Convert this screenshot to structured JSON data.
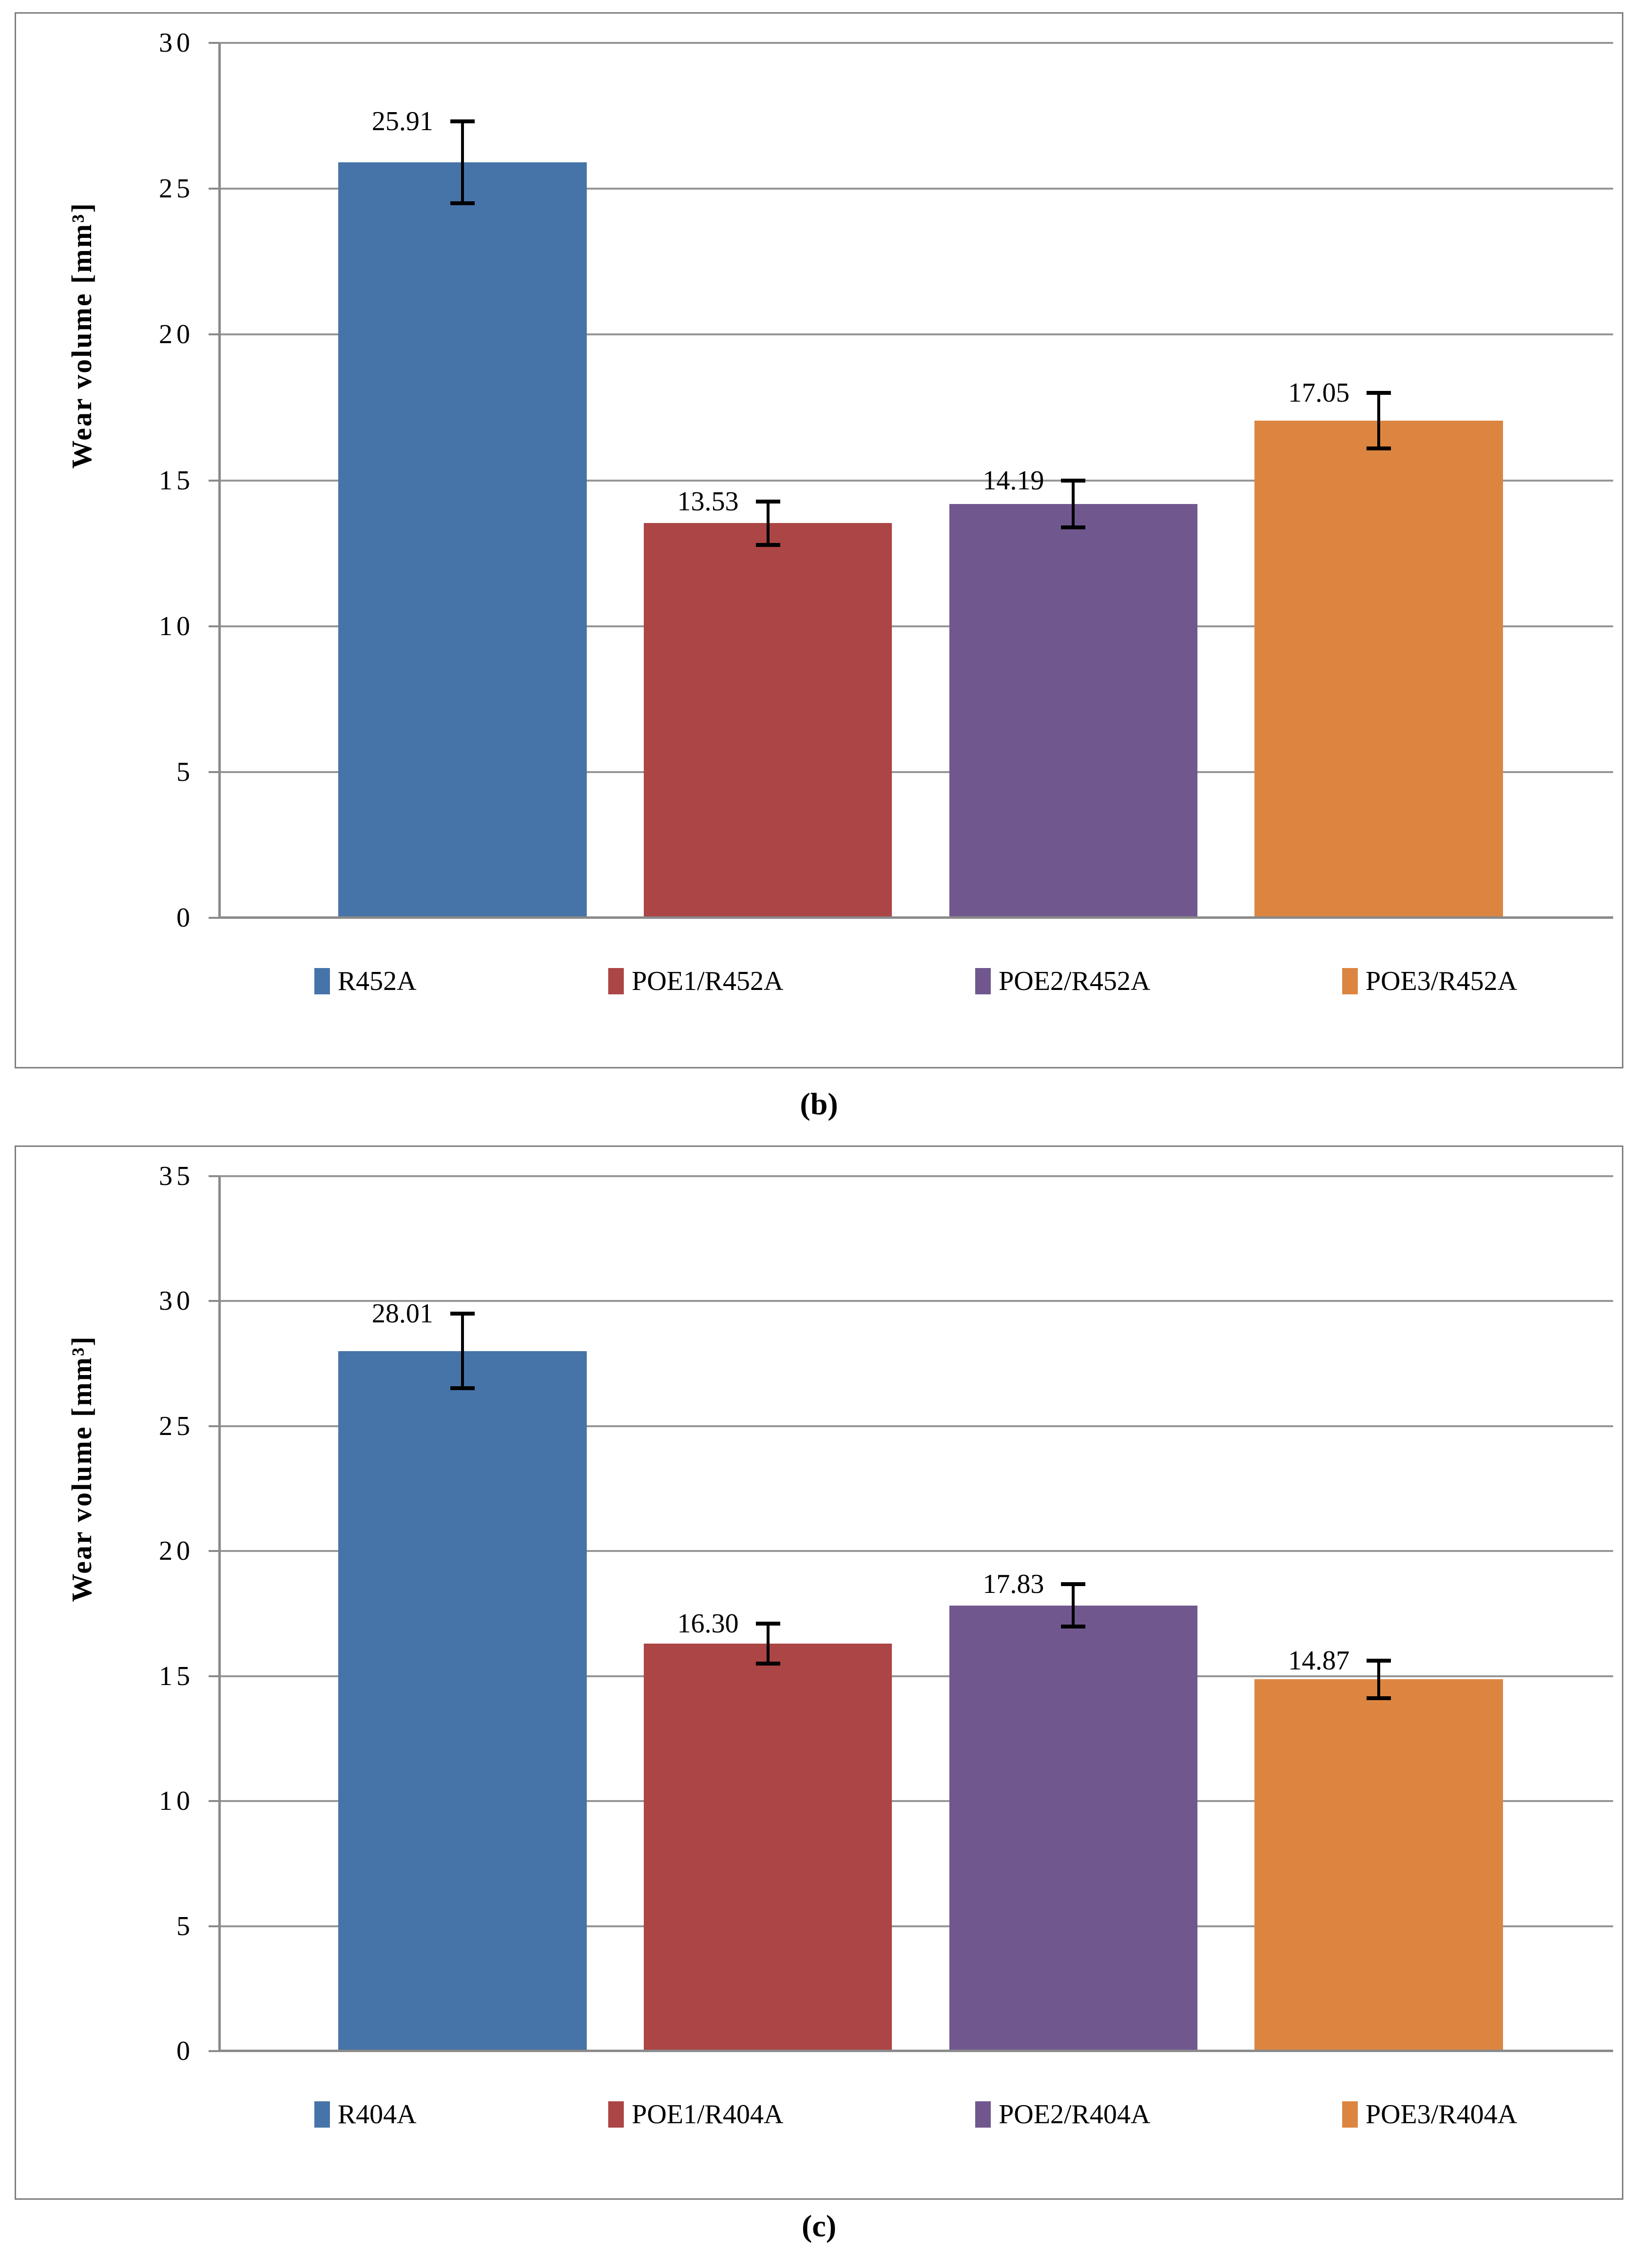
{
  "figure": {
    "background": "#ffffff",
    "panels": [
      {
        "id": "b",
        "caption": "(b)"
      },
      {
        "id": "c",
        "caption": "(c)"
      }
    ]
  },
  "style": {
    "panel_border_color": "#7f7f7f",
    "gridline_color": "#969696",
    "axis_color": "#8a8a8a",
    "error_bar_color": "#000000",
    "text_color": "#000000"
  },
  "chart_data": [
    {
      "type": "bar",
      "title": "",
      "caption": "(b)",
      "xlabel": "",
      "ylabel": "Wear volume [mm³]",
      "categories": [
        "R452A",
        "POE1/R452A",
        "POE2/R452A",
        "POE3/R452A"
      ],
      "values": [
        25.91,
        13.53,
        14.19,
        17.05
      ],
      "value_labels": [
        "25.91",
        "13.53",
        "14.19",
        "17.05"
      ],
      "error_bars": [
        1.4,
        0.75,
        0.8,
        0.95
      ],
      "bar_colors": [
        "#4674A8",
        "#AC4545",
        "#70588F",
        "#DC8540"
      ],
      "ylim": [
        0,
        30
      ],
      "yticks": [
        0,
        5,
        10,
        15,
        20,
        25,
        30
      ],
      "grid": true,
      "legend_position": "bottom"
    },
    {
      "type": "bar",
      "title": "",
      "caption": "(c)",
      "xlabel": "",
      "ylabel": "Wear volume [mm³]",
      "categories": [
        "R404A",
        "POE1/R404A",
        "POE2/R404A",
        "POE3/R404A"
      ],
      "values": [
        28.01,
        16.3,
        17.83,
        14.87
      ],
      "value_labels": [
        "28.01",
        "16.30",
        "17.83",
        "14.87"
      ],
      "error_bars": [
        1.5,
        0.8,
        0.85,
        0.75
      ],
      "bar_colors": [
        "#4674A8",
        "#AC4545",
        "#70588F",
        "#DC8540"
      ],
      "ylim": [
        0,
        35
      ],
      "yticks": [
        0,
        5,
        10,
        15,
        20,
        25,
        30,
        35
      ],
      "grid": true,
      "legend_position": "bottom"
    }
  ]
}
